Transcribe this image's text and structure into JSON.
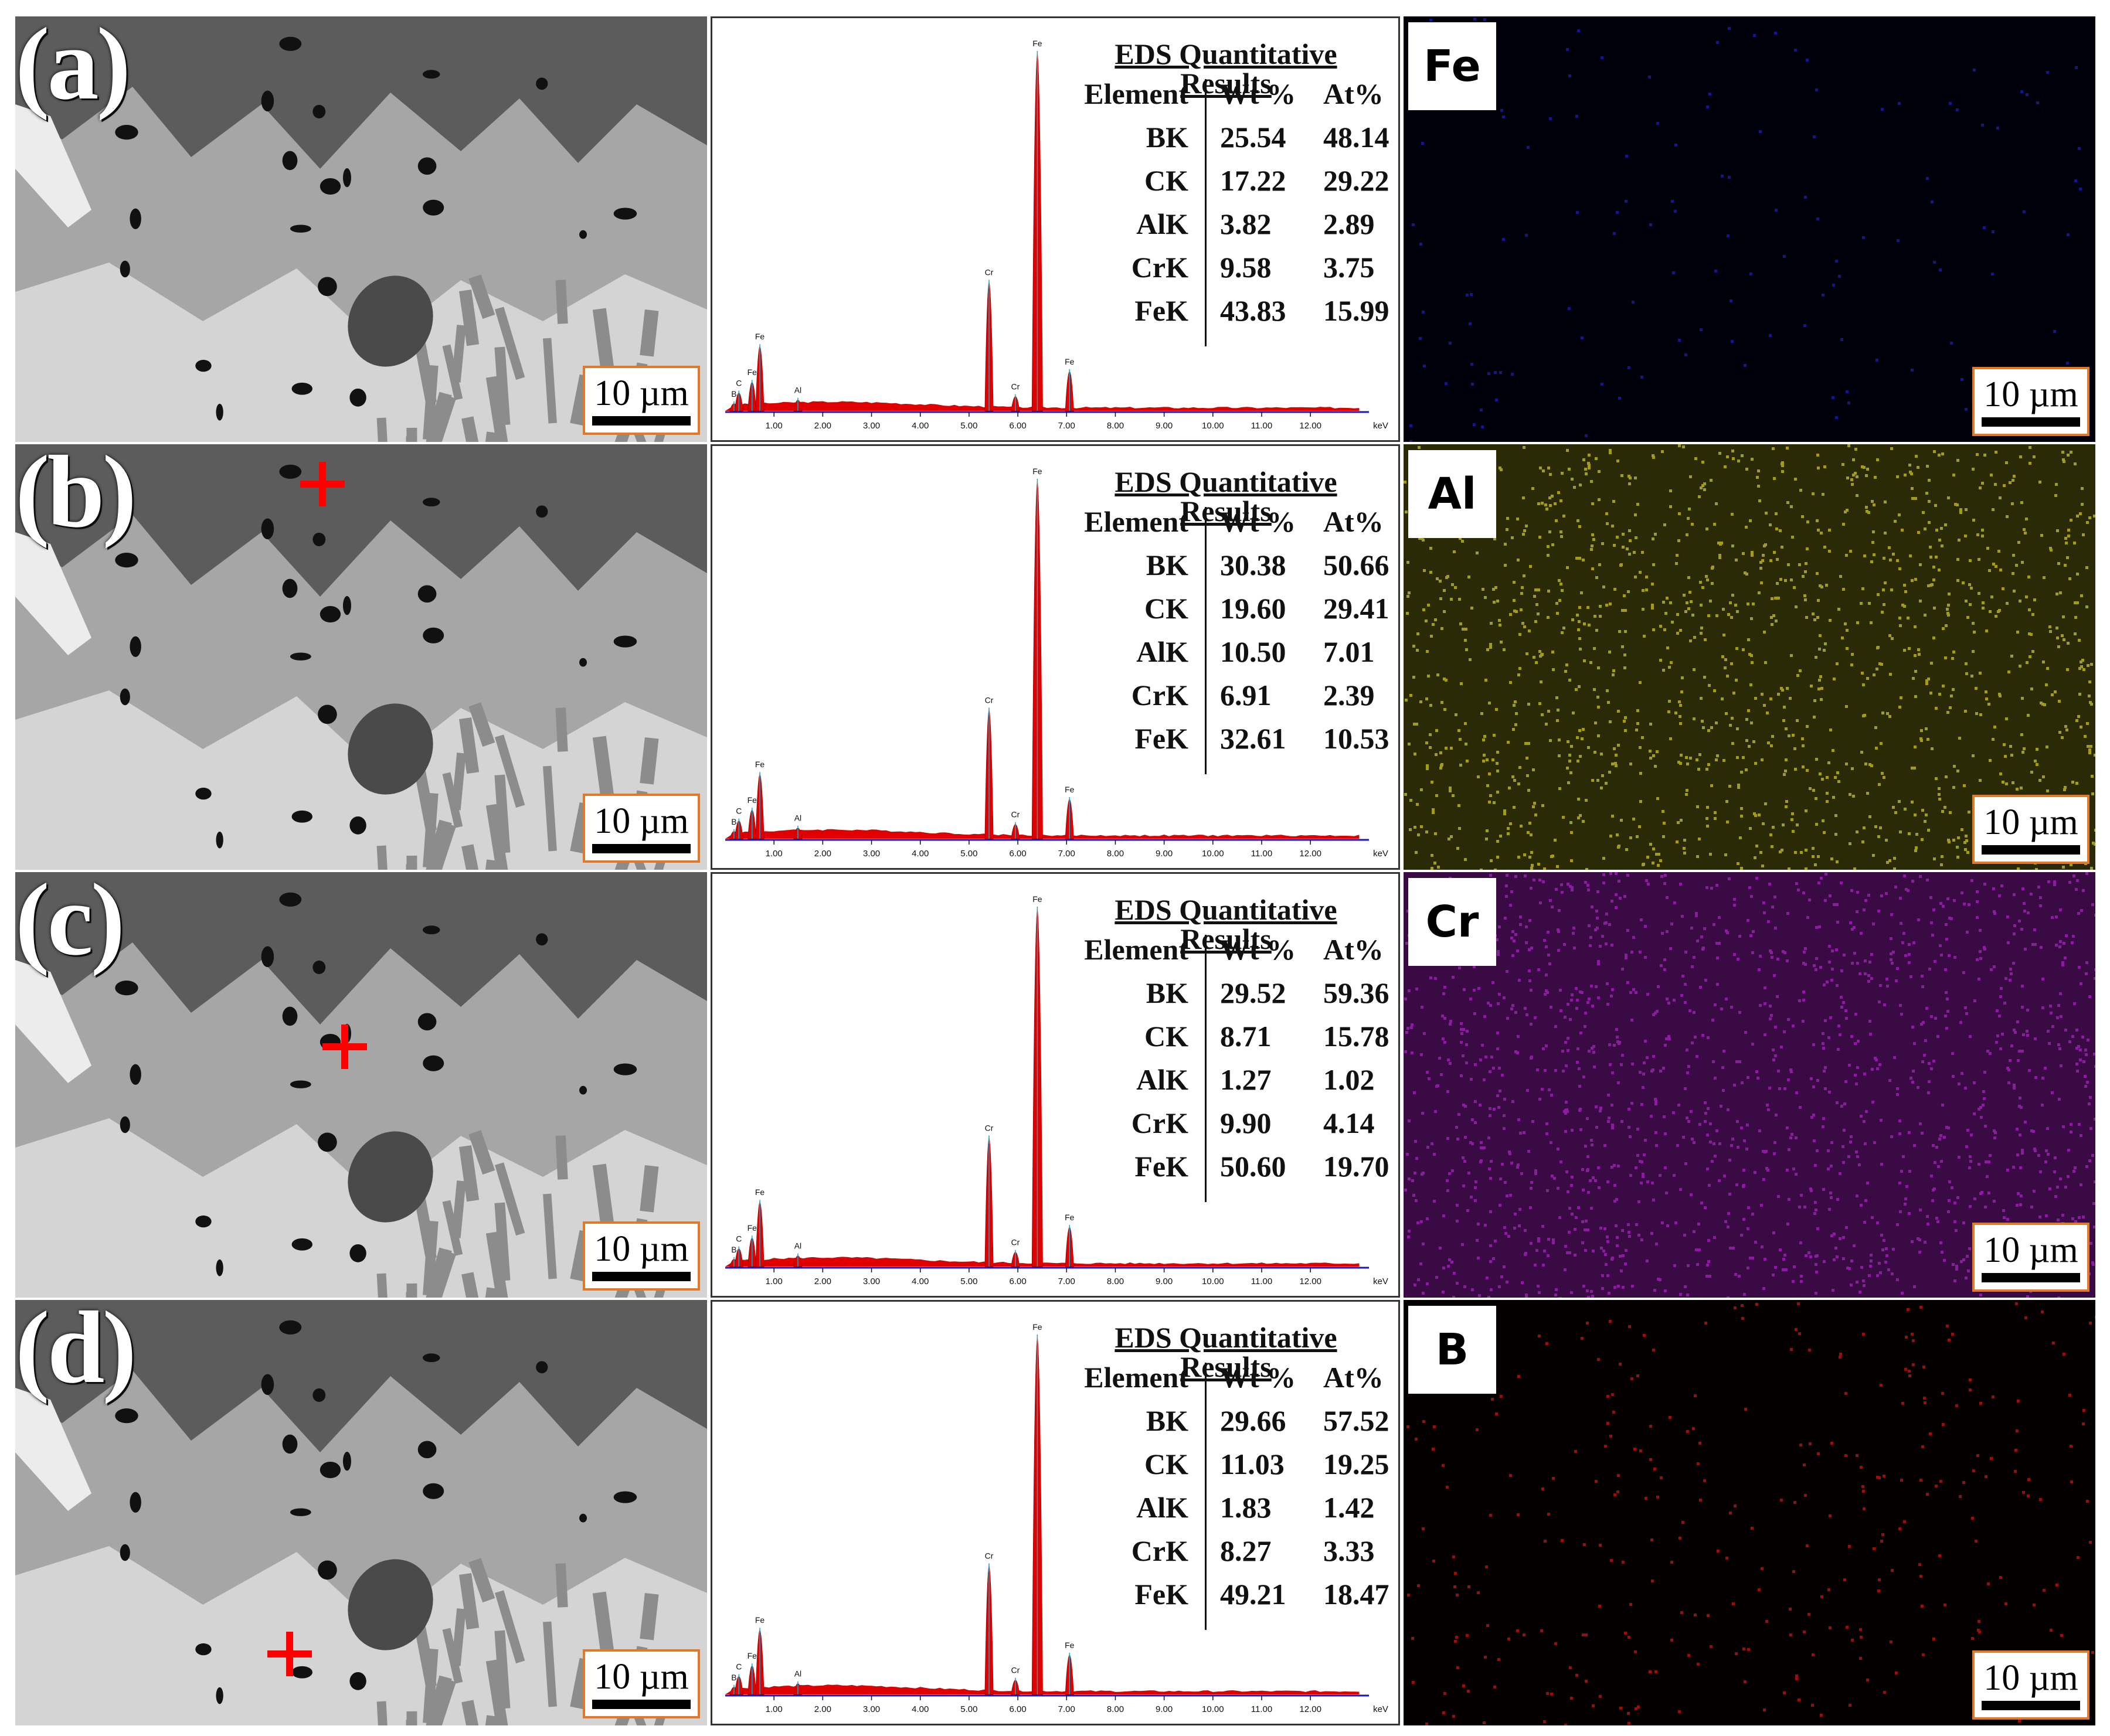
{
  "figure": {
    "rows": [
      {
        "panel_label": "(a)",
        "cross": false,
        "eds_title": "EDS Quantitative Results",
        "header": {
          "element": "Element",
          "wt": "Wt %",
          "at": "At%"
        },
        "table": [
          {
            "element": "BK",
            "wt": "25.54",
            "at": "48.14"
          },
          {
            "element": "CK",
            "wt": "17.22",
            "at": "29.22"
          },
          {
            "element": "AlK",
            "wt": "3.82",
            "at": "2.89"
          },
          {
            "element": "CrK",
            "wt": "9.58",
            "at": "3.75"
          },
          {
            "element": "FeK",
            "wt": "43.83",
            "at": "15.99"
          }
        ],
        "map_element": "Fe",
        "map_color": "#1a1aa0",
        "map_bg": "#00000a",
        "map_density": 0.05
      },
      {
        "panel_label": "(b)",
        "cross": true,
        "eds_title": "EDS Quantitative Results",
        "header": {
          "element": "Element",
          "wt": "Wt %",
          "at": "At%"
        },
        "table": [
          {
            "element": "BK",
            "wt": "30.38",
            "at": "50.66"
          },
          {
            "element": "CK",
            "wt": "19.60",
            "at": "29.41"
          },
          {
            "element": "AlK",
            "wt": "10.50",
            "at": "7.01"
          },
          {
            "element": "CrK",
            "wt": "6.91",
            "at": "2.39"
          },
          {
            "element": "FeK",
            "wt": "32.61",
            "at": "10.53"
          }
        ],
        "map_element": "Al",
        "map_color": "#b8b020",
        "map_bg": "#2a2a06",
        "map_density": 0.55
      },
      {
        "panel_label": "(c)",
        "cross": true,
        "eds_title": "EDS Quantitative Results",
        "header": {
          "element": "Element",
          "wt": "Wt %",
          "at": "At%"
        },
        "table": [
          {
            "element": "BK",
            "wt": "29.52",
            "at": "59.36"
          },
          {
            "element": "CK",
            "wt": "8.71",
            "at": "15.78"
          },
          {
            "element": "AlK",
            "wt": "1.27",
            "at": "1.02"
          },
          {
            "element": "CrK",
            "wt": "9.90",
            "at": "4.14"
          },
          {
            "element": "FeK",
            "wt": "50.60",
            "at": "19.70"
          }
        ],
        "map_element": "Cr",
        "map_color": "#9a20b0",
        "map_bg": "#3a0a44",
        "map_density": 0.6
      },
      {
        "panel_label": "(d)",
        "cross": true,
        "eds_title": "EDS Quantitative Results",
        "header": {
          "element": "Element",
          "wt": "Wt %",
          "at": "At%"
        },
        "table": [
          {
            "element": "BK",
            "wt": "29.66",
            "at": "57.52"
          },
          {
            "element": "CK",
            "wt": "11.03",
            "at": "19.25"
          },
          {
            "element": "AlK",
            "wt": "1.83",
            "at": "1.42"
          },
          {
            "element": "CrK",
            "wt": "8.27",
            "at": "3.33"
          },
          {
            "element": "FeK",
            "wt": "49.21",
            "at": "18.47"
          }
        ],
        "map_element": "B",
        "map_color": "#b01010",
        "map_bg": "#050000",
        "map_density": 0.12
      }
    ],
    "scale_bar_label": "10 µm",
    "spectrum": {
      "x_axis_unit": "keV",
      "x_ticks": [
        "1.00",
        "2.00",
        "3.00",
        "4.00",
        "5.00",
        "6.00",
        "7.00",
        "8.00",
        "9.00",
        "10.00",
        "11.00",
        "12.00"
      ],
      "x_range": [
        0,
        13.2
      ],
      "peaks": [
        {
          "label": "B",
          "energy": 0.18,
          "rel_height": 0.02
        },
        {
          "label": "C",
          "energy": 0.28,
          "rel_height": 0.05
        },
        {
          "label": "Fe",
          "energy": 0.55,
          "rel_height": 0.08
        },
        {
          "label": "Fe",
          "energy": 0.71,
          "rel_height": 0.18
        },
        {
          "label": "Al",
          "energy": 1.49,
          "rel_height": 0.03
        },
        {
          "label": "Cr",
          "energy": 5.41,
          "rel_height": 0.36
        },
        {
          "label": "Cr",
          "energy": 5.95,
          "rel_height": 0.04
        },
        {
          "label": "Fe",
          "energy": 6.4,
          "rel_height": 1.0
        },
        {
          "label": "Fe",
          "energy": 7.06,
          "rel_height": 0.11
        }
      ]
    }
  }
}
